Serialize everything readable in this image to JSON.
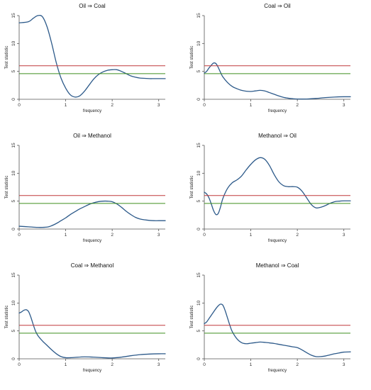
{
  "colors": {
    "curve": "#2d5a8a",
    "critical_10pct": "#3f8f1f",
    "critical_5pct": "#c0393b",
    "axis": "#555555"
  },
  "chart_data": [
    {
      "type": "line",
      "title": "Oil ⇒ Coal",
      "xlabel": "frequency",
      "ylabel": "Test statistic",
      "xlim": [
        0,
        3.14159
      ],
      "ylim": [
        0,
        15
      ],
      "xticks": [
        0,
        1,
        2,
        3
      ],
      "yticks": [
        0,
        5,
        10,
        15
      ],
      "series": [
        {
          "role": "statistic",
          "x": [
            0,
            0.2,
            0.3,
            0.4,
            0.5,
            0.6,
            0.7,
            0.8,
            0.9,
            1.0,
            1.1,
            1.2,
            1.3,
            1.4,
            1.5,
            1.6,
            1.7,
            1.8,
            1.9,
            2.0,
            2.1,
            2.2,
            2.3,
            2.4,
            2.5,
            2.6,
            2.7,
            2.8,
            2.9,
            3.0,
            3.1416
          ],
          "y": [
            13.7,
            13.9,
            14.5,
            15.0,
            14.8,
            13.0,
            10.0,
            6.5,
            3.8,
            2.0,
            0.8,
            0.4,
            0.6,
            1.4,
            2.5,
            3.6,
            4.4,
            4.9,
            5.2,
            5.3,
            5.3,
            5.0,
            4.6,
            4.2,
            3.95,
            3.8,
            3.75,
            3.7,
            3.7,
            3.7,
            3.7
          ]
        },
        {
          "role": "critical-5pct",
          "x": [
            0,
            3.14159
          ],
          "y": [
            6.0,
            6.0
          ]
        },
        {
          "role": "critical-10pct",
          "x": [
            0,
            3.14159
          ],
          "y": [
            4.6,
            4.6
          ]
        }
      ]
    },
    {
      "type": "line",
      "title": "Coal ⇒ Oil",
      "xlabel": "frequency",
      "ylabel": "Test statistic",
      "xlim": [
        0,
        3.14159
      ],
      "ylim": [
        0,
        15
      ],
      "xticks": [
        0,
        1,
        2,
        3
      ],
      "yticks": [
        0,
        5,
        10,
        15
      ],
      "series": [
        {
          "role": "statistic",
          "x": [
            0,
            0.05,
            0.1,
            0.15,
            0.2,
            0.25,
            0.3,
            0.35,
            0.4,
            0.5,
            0.6,
            0.7,
            0.8,
            0.9,
            1.0,
            1.1,
            1.2,
            1.3,
            1.4,
            1.5,
            1.6,
            1.7,
            1.8,
            1.9,
            2.0,
            2.2,
            2.4,
            2.6,
            2.8,
            3.0,
            3.1416
          ],
          "y": [
            4.7,
            5.0,
            5.6,
            6.1,
            6.5,
            6.4,
            5.7,
            4.8,
            4.0,
            3.0,
            2.3,
            1.9,
            1.6,
            1.45,
            1.4,
            1.5,
            1.6,
            1.5,
            1.2,
            0.9,
            0.6,
            0.35,
            0.2,
            0.1,
            0.05,
            0.05,
            0.15,
            0.3,
            0.4,
            0.45,
            0.45
          ]
        },
        {
          "role": "critical-5pct",
          "x": [
            0,
            3.14159
          ],
          "y": [
            6.0,
            6.0
          ]
        },
        {
          "role": "critical-10pct",
          "x": [
            0,
            3.14159
          ],
          "y": [
            4.6,
            4.6
          ]
        }
      ]
    },
    {
      "type": "line",
      "title": "Oil ⇒ Methanol",
      "xlabel": "frequency",
      "ylabel": "Test statistic",
      "xlim": [
        0,
        3.14159
      ],
      "ylim": [
        0,
        15
      ],
      "xticks": [
        0,
        1,
        2,
        3
      ],
      "yticks": [
        0,
        5,
        10,
        15
      ],
      "series": [
        {
          "role": "statistic",
          "x": [
            0,
            0.2,
            0.4,
            0.6,
            0.7,
            0.8,
            0.9,
            1.0,
            1.1,
            1.2,
            1.3,
            1.4,
            1.5,
            1.6,
            1.7,
            1.8,
            1.9,
            2.0,
            2.1,
            2.2,
            2.3,
            2.4,
            2.5,
            2.6,
            2.7,
            2.8,
            2.9,
            3.0,
            3.1416
          ],
          "y": [
            0.5,
            0.4,
            0.3,
            0.35,
            0.6,
            1.0,
            1.5,
            2.0,
            2.6,
            3.1,
            3.6,
            4.0,
            4.4,
            4.7,
            4.9,
            5.0,
            5.0,
            4.9,
            4.5,
            3.9,
            3.2,
            2.6,
            2.1,
            1.8,
            1.65,
            1.55,
            1.5,
            1.5,
            1.5
          ]
        },
        {
          "role": "critical-5pct",
          "x": [
            0,
            3.14159
          ],
          "y": [
            6.0,
            6.0
          ]
        },
        {
          "role": "critical-10pct",
          "x": [
            0,
            3.14159
          ],
          "y": [
            4.6,
            4.6
          ]
        }
      ]
    },
    {
      "type": "line",
      "title": "Methanol ⇒ Oil",
      "xlabel": "frequency",
      "ylabel": "Test statistic",
      "xlim": [
        0,
        3.14159
      ],
      "ylim": [
        0,
        15
      ],
      "xticks": [
        0,
        1,
        2,
        3
      ],
      "yticks": [
        0,
        5,
        10,
        15
      ],
      "series": [
        {
          "role": "statistic",
          "x": [
            0,
            0.05,
            0.1,
            0.15,
            0.2,
            0.25,
            0.3,
            0.35,
            0.4,
            0.5,
            0.6,
            0.7,
            0.8,
            0.9,
            1.0,
            1.1,
            1.2,
            1.3,
            1.4,
            1.5,
            1.6,
            1.7,
            1.8,
            1.9,
            2.0,
            2.1,
            2.2,
            2.3,
            2.4,
            2.5,
            2.6,
            2.7,
            2.8,
            2.9,
            3.0,
            3.1416
          ],
          "y": [
            6.6,
            6.3,
            5.6,
            4.5,
            3.3,
            2.6,
            2.8,
            4.0,
            5.5,
            7.3,
            8.3,
            8.8,
            9.5,
            10.6,
            11.6,
            12.4,
            12.8,
            12.5,
            11.4,
            9.8,
            8.5,
            7.8,
            7.6,
            7.6,
            7.5,
            6.8,
            5.6,
            4.4,
            3.8,
            3.9,
            4.2,
            4.6,
            4.9,
            5.0,
            5.05,
            5.05
          ]
        },
        {
          "role": "critical-5pct",
          "x": [
            0,
            3.14159
          ],
          "y": [
            6.0,
            6.0
          ]
        },
        {
          "role": "critical-10pct",
          "x": [
            0,
            3.14159
          ],
          "y": [
            4.6,
            4.6
          ]
        }
      ]
    },
    {
      "type": "line",
      "title": "Coal ⇒ Methanol",
      "xlabel": "frequency",
      "ylabel": "Test statistic",
      "xlim": [
        0,
        3.14159
      ],
      "ylim": [
        0,
        15
      ],
      "xticks": [
        0,
        1,
        2,
        3
      ],
      "yticks": [
        0,
        5,
        10,
        15
      ],
      "series": [
        {
          "role": "statistic",
          "x": [
            0,
            0.05,
            0.1,
            0.15,
            0.2,
            0.25,
            0.3,
            0.35,
            0.4,
            0.5,
            0.6,
            0.7,
            0.8,
            0.9,
            1.0,
            1.1,
            1.2,
            1.4,
            1.6,
            1.8,
            2.0,
            2.2,
            2.4,
            2.6,
            2.8,
            3.0,
            3.1416
          ],
          "y": [
            8.2,
            8.4,
            8.7,
            8.8,
            8.5,
            7.5,
            6.2,
            5.0,
            4.2,
            3.2,
            2.4,
            1.6,
            0.9,
            0.4,
            0.2,
            0.2,
            0.25,
            0.35,
            0.3,
            0.2,
            0.15,
            0.3,
            0.55,
            0.75,
            0.85,
            0.9,
            0.9
          ]
        },
        {
          "role": "critical-5pct",
          "x": [
            0,
            3.14159
          ],
          "y": [
            6.0,
            6.0
          ]
        },
        {
          "role": "critical-10pct",
          "x": [
            0,
            3.14159
          ],
          "y": [
            4.6,
            4.6
          ]
        }
      ]
    },
    {
      "type": "line",
      "title": "Methanol ⇒ Coal",
      "xlabel": "frequency",
      "ylabel": "Test statistic",
      "xlim": [
        0,
        3.14159
      ],
      "ylim": [
        0,
        15
      ],
      "xticks": [
        0,
        1,
        2,
        3
      ],
      "yticks": [
        0,
        5,
        10,
        15
      ],
      "series": [
        {
          "role": "statistic",
          "x": [
            0,
            0.05,
            0.1,
            0.15,
            0.2,
            0.25,
            0.3,
            0.35,
            0.4,
            0.45,
            0.5,
            0.55,
            0.6,
            0.7,
            0.8,
            0.9,
            1.0,
            1.1,
            1.2,
            1.3,
            1.4,
            1.5,
            1.6,
            1.7,
            1.8,
            1.9,
            2.0,
            2.1,
            2.2,
            2.3,
            2.4,
            2.5,
            2.6,
            2.7,
            2.8,
            2.9,
            3.0,
            3.1416
          ],
          "y": [
            6.3,
            6.6,
            7.2,
            7.8,
            8.4,
            9.0,
            9.5,
            9.8,
            9.6,
            8.6,
            7.3,
            6.0,
            4.9,
            3.6,
            2.9,
            2.7,
            2.8,
            2.9,
            3.0,
            2.95,
            2.85,
            2.75,
            2.6,
            2.45,
            2.3,
            2.15,
            2.0,
            1.6,
            1.1,
            0.65,
            0.4,
            0.4,
            0.5,
            0.7,
            0.9,
            1.05,
            1.2,
            1.25
          ]
        },
        {
          "role": "critical-5pct",
          "x": [
            0,
            3.14159
          ],
          "y": [
            6.0,
            6.0
          ]
        },
        {
          "role": "critical-10pct",
          "x": [
            0,
            3.14159
          ],
          "y": [
            4.6,
            4.6
          ]
        }
      ]
    }
  ]
}
